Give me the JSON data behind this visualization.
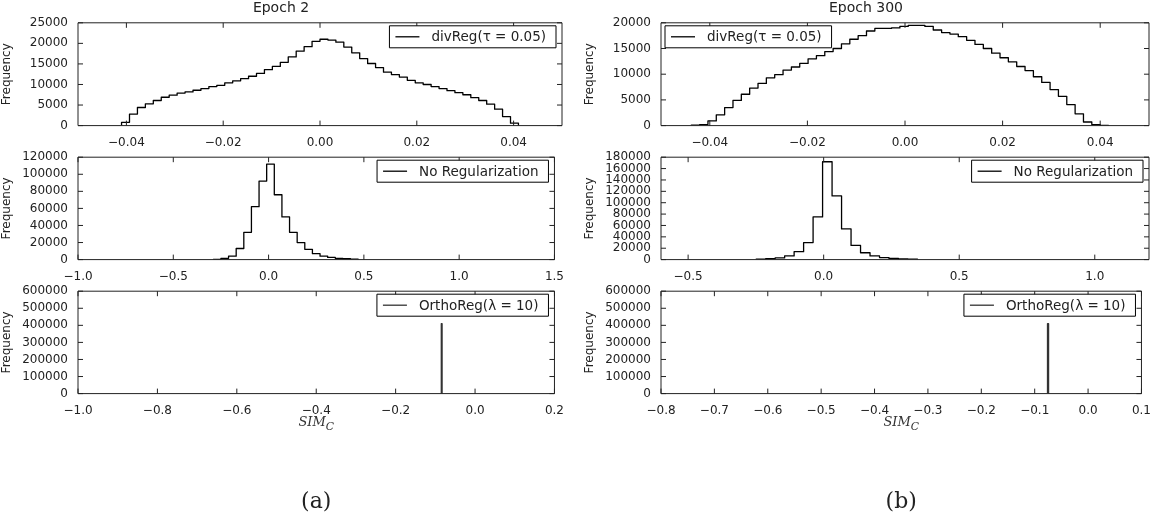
{
  "chart_data": [
    {
      "type": "histogram",
      "title": "Epoch 2",
      "ylabel": "Frequency",
      "legend": "top right",
      "bins": [
        -0.041,
        -0.03936,
        -0.03772,
        -0.03608,
        -0.03444,
        -0.0328,
        -0.03116,
        -0.02952,
        -0.02788,
        -0.02624,
        -0.0246,
        -0.02296,
        -0.02132,
        -0.01968,
        -0.01804,
        -0.0164,
        -0.01476,
        -0.01312,
        -0.01148,
        -0.00984,
        -0.0082,
        -0.00656,
        -0.00492,
        -0.00328,
        -0.00164,
        0,
        0.00164,
        0.00328,
        0.00492,
        0.00656,
        0.0082,
        0.00984,
        0.01148,
        0.01312,
        0.01476,
        0.0164,
        0.01804,
        0.01968,
        0.02132,
        0.02296,
        0.0246,
        0.02624,
        0.02788,
        0.02952,
        0.03116,
        0.0328,
        0.03444,
        0.03608,
        0.03772,
        0.03936,
        0.041
      ],
      "series": [
        {
          "name": "divReg(τ = 0.05)",
          "color": "#000000",
          "values": [
            800,
            2800,
            4400,
            5300,
            6100,
            6900,
            7400,
            7900,
            8200,
            8600,
            9000,
            9500,
            9800,
            10400,
            10900,
            11400,
            12000,
            12700,
            13600,
            14400,
            15400,
            16700,
            18100,
            19200,
            20500,
            21000,
            20800,
            20300,
            19100,
            17700,
            16300,
            15100,
            14100,
            13000,
            12400,
            11800,
            11000,
            10400,
            10000,
            9500,
            9000,
            8500,
            8000,
            7500,
            6800,
            6100,
            5200,
            4000,
            2200,
            600
          ]
        }
      ],
      "xlim": [
        -0.05,
        0.05
      ],
      "xticks": [
        {
          "value": -0.04,
          "label": "−0.04"
        },
        {
          "value": -0.02,
          "label": "−0.02"
        },
        {
          "value": 0,
          "label": "0.00"
        },
        {
          "value": 0.02,
          "label": "0.02"
        },
        {
          "value": 0.04,
          "label": "0.04"
        }
      ],
      "ylim": [
        0,
        25000
      ],
      "yticks": [
        0,
        5000,
        10000,
        15000,
        20000,
        25000
      ]
    },
    {
      "type": "histogram",
      "title": "Epoch 300",
      "ylabel": "Frequency",
      "legend": "top left",
      "bins": [
        -0.0438,
        -0.04209,
        -0.04038,
        -0.03867,
        -0.03696,
        -0.03525,
        -0.03354,
        -0.03183,
        -0.03012,
        -0.02841,
        -0.0267,
        -0.02499,
        -0.02328,
        -0.02157,
        -0.01986,
        -0.01815,
        -0.01644,
        -0.01473,
        -0.01302,
        -0.01131,
        -0.0096,
        -0.00789,
        -0.00618,
        -0.00447,
        -0.00276,
        -0.00105,
        0.00066,
        0.00237,
        0.00408,
        0.00579,
        0.0075,
        0.00921,
        0.01092,
        0.01263,
        0.01434,
        0.01605,
        0.01776,
        0.01947,
        0.02118,
        0.02289,
        0.0246,
        0.02631,
        0.02802,
        0.02973,
        0.03144,
        0.03315,
        0.03486,
        0.03657,
        0.03828,
        0.03999,
        0.0417
      ],
      "series": [
        {
          "name": "divReg(τ = 0.05)",
          "color": "#000000",
          "values": [
            100,
            200,
            900,
            2100,
            3500,
            4900,
            6100,
            7300,
            8200,
            9300,
            9900,
            10800,
            11400,
            12100,
            13000,
            13600,
            14400,
            15000,
            15900,
            16800,
            17500,
            18400,
            18900,
            18900,
            19000,
            19300,
            19500,
            19500,
            19300,
            18600,
            18100,
            17800,
            17300,
            16600,
            15800,
            15000,
            14100,
            13200,
            12400,
            11500,
            10700,
            9500,
            8400,
            7000,
            5700,
            4100,
            2300,
            700,
            200,
            50
          ]
        }
      ],
      "xlim": [
        -0.05,
        0.05
      ],
      "xticks": [
        {
          "value": -0.04,
          "label": "−0.04"
        },
        {
          "value": -0.02,
          "label": "−0.02"
        },
        {
          "value": 0,
          "label": "0.00"
        },
        {
          "value": 0.02,
          "label": "0.02"
        },
        {
          "value": 0.04,
          "label": "0.04"
        }
      ],
      "ylim": [
        0,
        20000
      ],
      "yticks": [
        0,
        5000,
        10000,
        15000,
        20000
      ]
    },
    {
      "type": "histogram",
      "ylabel": "Frequency",
      "legend": "top right",
      "bins": [
        -0.29,
        -0.25,
        -0.21,
        -0.17,
        -0.13,
        -0.09,
        -0.05,
        -0.01,
        0.03,
        0.07,
        0.11,
        0.15,
        0.19,
        0.23,
        0.27,
        0.31,
        0.35,
        0.39,
        0.43,
        0.47
      ],
      "series": [
        {
          "name": "No Regularization",
          "color": "#000000",
          "values": [
            300,
            1500,
            4000,
            13000,
            32000,
            62000,
            92000,
            112000,
            76000,
            50000,
            32000,
            20000,
            12000,
            7000,
            4000,
            2500,
            1500,
            1000,
            600
          ]
        }
      ],
      "xlim": [
        -1,
        1.5
      ],
      "xticks": [
        {
          "value": -1,
          "label": "−1.0"
        },
        {
          "value": -0.5,
          "label": "−0.5"
        },
        {
          "value": 0,
          "label": "0.0"
        },
        {
          "value": 0.5,
          "label": "0.5"
        },
        {
          "value": 1,
          "label": "1.0"
        },
        {
          "value": 1.5,
          "label": "1.5"
        }
      ],
      "ylim": [
        0,
        120000
      ],
      "yticks": [
        0,
        20000,
        40000,
        60000,
        80000,
        100000,
        120000
      ]
    },
    {
      "type": "histogram",
      "ylabel": "Frequency",
      "legend": "top right",
      "bins": [
        -0.249,
        -0.214,
        -0.179,
        -0.144,
        -0.109,
        -0.074,
        -0.039,
        -0.004,
        0.031,
        0.066,
        0.101,
        0.136,
        0.171,
        0.206,
        0.241,
        0.276,
        0.311,
        0.346
      ],
      "series": [
        {
          "name": "No Regularization",
          "color": "#000000",
          "values": [
            700,
            1500,
            3000,
            6500,
            14000,
            30000,
            75000,
            172000,
            112000,
            54000,
            25000,
            12000,
            6500,
            3500,
            2000,
            1200,
            700
          ]
        }
      ],
      "xlim": [
        -0.6,
        1.2
      ],
      "xticks": [
        {
          "value": -0.5,
          "label": "−0.5"
        },
        {
          "value": 0,
          "label": "0.0"
        },
        {
          "value": 0.5,
          "label": "0.5"
        },
        {
          "value": 1,
          "label": "1.0"
        }
      ],
      "ylim": [
        0,
        180000
      ],
      "yticks": [
        0,
        20000,
        40000,
        60000,
        80000,
        100000,
        120000,
        140000,
        160000,
        180000
      ]
    },
    {
      "type": "histogram",
      "ylabel": "Frequency",
      "xlabel": "SIM$_{C}$",
      "legend": "top right",
      "annotations": [
        "(a)"
      ],
      "bins": [
        -0.085,
        -0.083
      ],
      "series": [
        {
          "name": "OrthoReg(λ = 10)",
          "color": "#333333",
          "values": [
            410000
          ]
        }
      ],
      "xlim": [
        -1,
        0.2
      ],
      "xticks": [
        {
          "value": -1,
          "label": "−1.0"
        },
        {
          "value": -0.8,
          "label": "−0.8"
        },
        {
          "value": -0.6,
          "label": "−0.6"
        },
        {
          "value": -0.4,
          "label": "−0.4"
        },
        {
          "value": -0.2,
          "label": "−0.2"
        },
        {
          "value": 0,
          "label": "0.0"
        },
        {
          "value": 0.2,
          "label": "0.2"
        }
      ],
      "ylim": [
        0,
        600000
      ],
      "yticks": [
        0,
        100000,
        200000,
        300000,
        400000,
        500000,
        600000
      ]
    },
    {
      "type": "histogram",
      "ylabel": "Frequency",
      "xlabel": "SIM$_{C}$",
      "legend": "top right",
      "annotations": [
        "(b)"
      ],
      "bins": [
        -0.076,
        -0.074
      ],
      "series": [
        {
          "name": "OrthoReg(λ = 10)",
          "color": "#333333",
          "values": [
            410000
          ]
        }
      ],
      "xlim": [
        -0.8,
        0.1
      ],
      "xticks": [
        {
          "value": -0.8,
          "label": "−0.8"
        },
        {
          "value": -0.7,
          "label": "−0.7"
        },
        {
          "value": -0.6,
          "label": "−0.6"
        },
        {
          "value": -0.5,
          "label": "−0.5"
        },
        {
          "value": -0.4,
          "label": "−0.4"
        },
        {
          "value": -0.3,
          "label": "−0.3"
        },
        {
          "value": -0.2,
          "label": "−0.2"
        },
        {
          "value": -0.1,
          "label": "−0.1"
        },
        {
          "value": 0,
          "label": "0.0"
        },
        {
          "value": 0.1,
          "label": "0.1"
        }
      ],
      "ylim": [
        0,
        600000
      ],
      "yticks": [
        0,
        100000,
        200000,
        300000,
        400000,
        500000,
        600000
      ]
    }
  ]
}
